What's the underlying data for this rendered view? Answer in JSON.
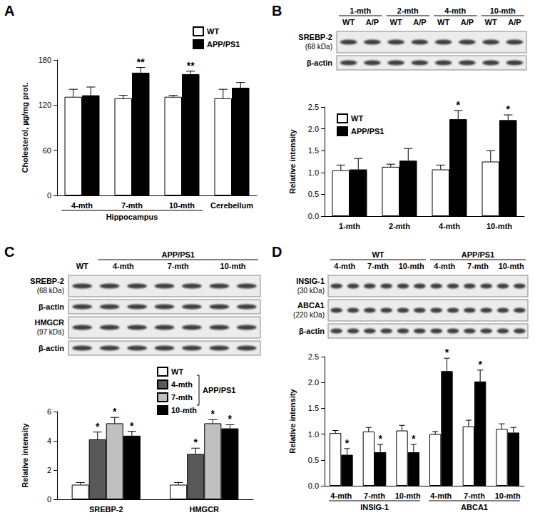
{
  "panels": [
    {
      "label": "A"
    },
    {
      "label": "B",
      "blot": {
        "lanes": 8,
        "header_rows": [
          [
            {
              "label": "1-mth",
              "start": 0,
              "span": 2
            },
            {
              "label": "2-mth",
              "start": 2,
              "span": 2
            },
            {
              "label": "4-mth",
              "start": 4,
              "span": 2
            },
            {
              "label": "10-mth",
              "start": 6,
              "span": 2
            }
          ],
          [
            {
              "label": "WT",
              "start": 0,
              "span": 1
            },
            {
              "label": "A/P",
              "start": 1,
              "span": 1
            },
            {
              "label": "WT",
              "start": 2,
              "span": 1
            },
            {
              "label": "A/P",
              "start": 3,
              "span": 1
            },
            {
              "label": "WT",
              "start": 4,
              "span": 1
            },
            {
              "label": "A/P",
              "start": 5,
              "span": 1
            },
            {
              "label": "WT",
              "start": 6,
              "span": 1
            },
            {
              "label": "A/P",
              "start": 7,
              "span": 1
            }
          ]
        ],
        "rows": [
          {
            "label": "SREBP-2",
            "sublabel": "(68 kDa)"
          },
          {
            "label": "β-actin"
          }
        ]
      }
    },
    {
      "label": "C",
      "blot": {
        "lanes": 7,
        "header_rows": [
          [
            {
              "label": "APP/PS1",
              "start": 1,
              "span": 6
            }
          ],
          [
            {
              "label": "WT",
              "start": 0,
              "span": 1
            },
            {
              "label": "4-mth",
              "start": 1,
              "span": 2
            },
            {
              "label": "7-mth",
              "start": 3,
              "span": 2
            },
            {
              "label": "10-mth",
              "start": 5,
              "span": 2
            }
          ]
        ],
        "rows": [
          {
            "label": "SREBP-2",
            "sublabel": "(68 kDa)"
          },
          {
            "label": "β-actin"
          },
          {
            "label": "HMGCR",
            "sublabel": "(97 kDa)"
          },
          {
            "label": "β-actin"
          }
        ]
      }
    },
    {
      "label": "D",
      "blot": {
        "lanes": 12,
        "header_rows": [
          [
            {
              "label": "WT",
              "start": 0,
              "span": 6
            },
            {
              "label": "APP/PS1",
              "start": 6,
              "span": 6
            }
          ],
          [
            {
              "label": "4-mth",
              "start": 0,
              "span": 2
            },
            {
              "label": "7-mth",
              "start": 2,
              "span": 2
            },
            {
              "label": "10-mth",
              "start": 4,
              "span": 2
            },
            {
              "label": "4-mth",
              "start": 6,
              "span": 2
            },
            {
              "label": "7-mth",
              "start": 8,
              "span": 2
            },
            {
              "label": "10-mth",
              "start": 10,
              "span": 2
            }
          ]
        ],
        "rows": [
          {
            "label": "INSIG-1",
            "sublabel": "(30 kDa)"
          },
          {
            "label": "ABCA1",
            "sublabel": "(220 kDa)"
          },
          {
            "label": "β-actin"
          }
        ]
      }
    }
  ],
  "chart_data": [
    {
      "type": "bar",
      "ylabel": "Cholesterol, µg/mg prot.",
      "categories": [
        "4-mth",
        "7-mth",
        "10-mth",
        "Cerebellum"
      ],
      "groups": [
        {
          "label": "Hippocampus",
          "size": 3
        }
      ],
      "series": [
        {
          "name": "WT",
          "color": "#ffffff",
          "values": [
            131,
            129,
            131,
            129
          ],
          "errors": [
            10,
            4,
            2,
            12
          ],
          "annotations": [
            null,
            null,
            null,
            null
          ]
        },
        {
          "name": "APP/PS1",
          "color": "#000000",
          "values": [
            133,
            163,
            161,
            143
          ],
          "errors": [
            11,
            7,
            4,
            7
          ],
          "annotations": [
            null,
            "**",
            "**",
            null
          ]
        }
      ],
      "ylim": [
        0,
        180
      ],
      "yticks": [
        0,
        60,
        120,
        180
      ],
      "grid": false,
      "legend": "top-right"
    },
    {
      "type": "bar",
      "ylabel": "Relative intensity",
      "categories": [
        "1-mth",
        "2-mth",
        "4-mth",
        "10-mth"
      ],
      "series": [
        {
          "name": "WT",
          "color": "#ffffff",
          "values": [
            1.05,
            1.13,
            1.07,
            1.25
          ],
          "errors": [
            0.12,
            0.06,
            0.1,
            0.25
          ],
          "annotations": [
            null,
            null,
            null,
            null
          ]
        },
        {
          "name": "APP/PS1",
          "color": "#000000",
          "values": [
            1.07,
            1.27,
            2.22,
            2.2
          ],
          "errors": [
            0.25,
            0.28,
            0.2,
            0.12
          ],
          "annotations": [
            null,
            null,
            "*",
            "*"
          ]
        }
      ],
      "ylim": [
        0,
        2.5
      ],
      "yticks": [
        {
          "value": 0,
          "label": "0.0"
        },
        0.5,
        {
          "value": 1,
          "label": "1.0"
        },
        1.5,
        {
          "value": 2,
          "label": "2.0"
        },
        2.5
      ],
      "grid": false,
      "legend": "top-left"
    },
    {
      "type": "bar",
      "ylabel": "Relative intensity",
      "categories": [
        "SREBP-2",
        "HMGCR"
      ],
      "legend_group": {
        "label": "APP/PS1",
        "series": [
          "4-mth",
          "7-mth",
          "10-mth"
        ]
      },
      "series": [
        {
          "name": "WT",
          "color": "#ffffff",
          "values": [
            1.0,
            1.0
          ],
          "errors": [
            0.15,
            0.15
          ],
          "annotations": [
            null,
            null
          ]
        },
        {
          "name": "4-mth",
          "color": "#595959",
          "values": [
            4.1,
            3.1
          ],
          "errors": [
            0.5,
            0.4
          ],
          "annotations": [
            "*",
            "*"
          ]
        },
        {
          "name": "7-mth",
          "color": "#c0c0c0",
          "values": [
            5.2,
            5.2
          ],
          "errors": [
            0.4,
            0.25
          ],
          "annotations": [
            "*",
            "*"
          ]
        },
        {
          "name": "10-mth",
          "color": "#000000",
          "values": [
            4.35,
            4.85
          ],
          "errors": [
            0.3,
            0.25
          ],
          "annotations": [
            "*",
            "*"
          ]
        }
      ],
      "ylim": [
        0,
        6
      ],
      "yticks": [
        0,
        2,
        4,
        6
      ],
      "grid": false,
      "legend": "top-right"
    },
    {
      "type": "bar",
      "ylabel": "Relative intensity",
      "categories": [
        "4-mth",
        "7-mth",
        "10-mth",
        "4-mth",
        "7-mth",
        "10-mth"
      ],
      "groups": [
        {
          "label": "INSIG-1",
          "size": 3
        },
        {
          "label": "ABCA1",
          "size": 3
        }
      ],
      "series": [
        {
          "name": "WT",
          "color": "#ffffff",
          "values": [
            1.02,
            1.05,
            1.07,
            1.0,
            1.15,
            1.1
          ],
          "errors": [
            0.05,
            0.08,
            0.1,
            0.05,
            0.12,
            0.1
          ],
          "annotations": [
            null,
            null,
            null,
            null,
            null,
            null
          ]
        },
        {
          "name": "APP/PS1",
          "color": "#000000",
          "values": [
            0.6,
            0.65,
            0.65,
            2.22,
            2.02,
            1.03
          ],
          "errors": [
            0.12,
            0.15,
            0.15,
            0.25,
            0.22,
            0.1
          ],
          "annotations": [
            "*",
            "*",
            "*",
            "*",
            "*",
            null
          ]
        }
      ],
      "ylim": [
        0,
        2.5
      ],
      "yticks": [
        {
          "value": 0,
          "label": "0.0"
        },
        0.5,
        {
          "value": 1,
          "label": "1.0"
        },
        1.5,
        {
          "value": 2,
          "label": "2.0"
        },
        2.5
      ],
      "grid": false
    }
  ]
}
